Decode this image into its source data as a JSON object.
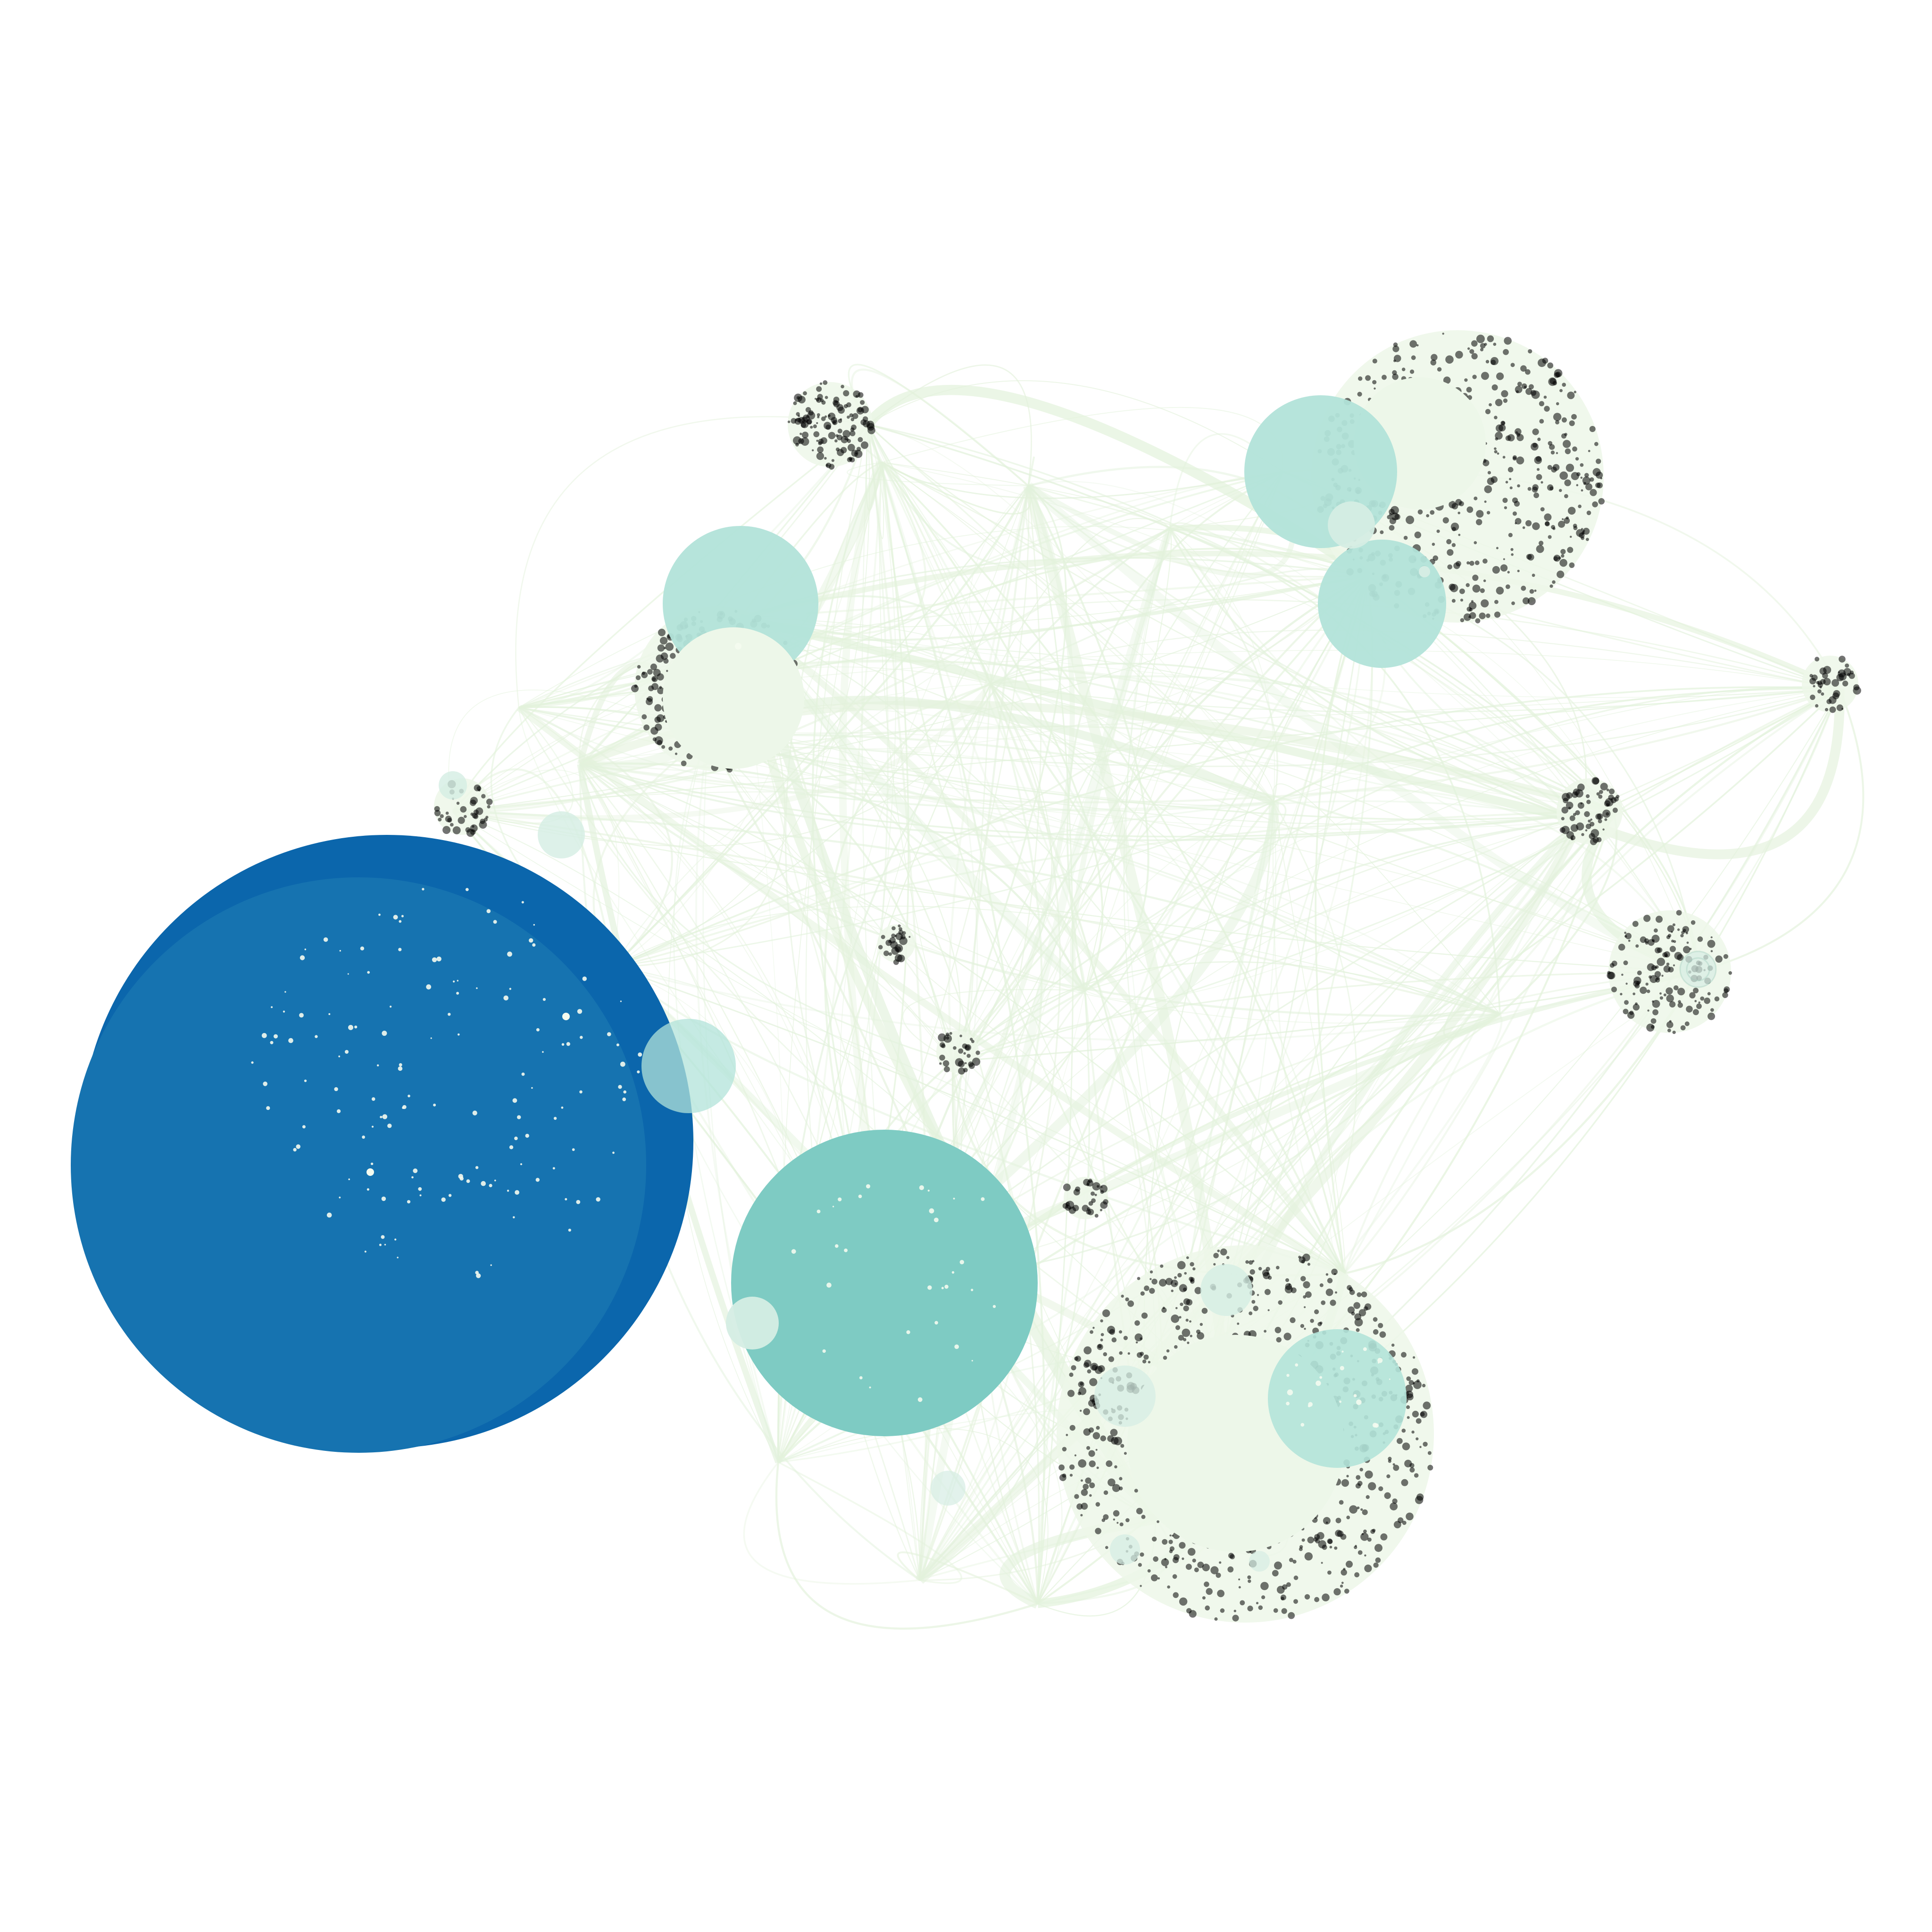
{
  "palette": {
    "background": "#ffffff",
    "edge": "#e3f2dc",
    "halo": "#edf7e9",
    "halo_speckle": "#d8e6d2",
    "dark_blue": "#0b66ac",
    "mid_blue": "#1673b0",
    "teal": "#7ecbc3",
    "light_teal": "#b2e3d9",
    "pale_teal": "#d5ede4",
    "pale_green": "#edf7e9",
    "dot": "#f4fbef"
  },
  "graph": {
    "title": "",
    "node_colors": {
      "hub_primary": "dark_blue",
      "hub_secondary": "mid_blue",
      "major": "teal",
      "cluster": "light_teal",
      "minor": "pale_teal",
      "background_cluster": "pale_green"
    }
  }
}
